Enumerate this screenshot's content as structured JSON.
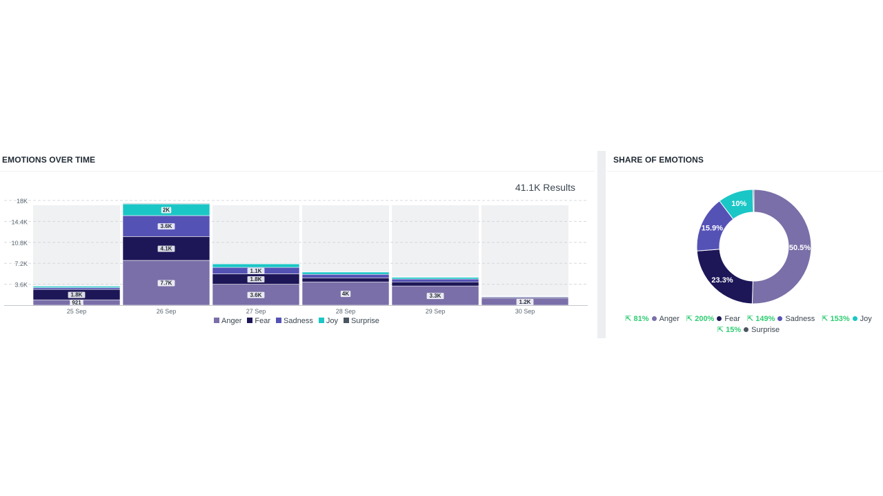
{
  "left_panel": {
    "title": "EMOTIONS OVER TIME",
    "results": "41.1K Results"
  },
  "right_panel": {
    "title": "SHARE OF EMOTIONS"
  },
  "colors": {
    "Anger": "#7a6fa8",
    "Fear": "#1d1758",
    "Sadness": "#5552b6",
    "Joy": "#1bc6c6",
    "Surprise": "#4a5560"
  },
  "chart_data": [
    {
      "type": "bar",
      "stacked": true,
      "categories": [
        "25 Sep",
        "26 Sep",
        "27 Sep",
        "28 Sep",
        "29 Sep",
        "30 Sep"
      ],
      "yticks": [
        "3.6K",
        "7.2K",
        "10.8K",
        "14.4K",
        "18K"
      ],
      "ytick_values": [
        3600,
        7200,
        10800,
        14400,
        18000
      ],
      "ylim": [
        0,
        18000
      ],
      "grid": true,
      "legend": "bottom",
      "series": [
        {
          "name": "Anger",
          "values": [
            921,
            7700,
            3600,
            4000,
            3300,
            1200
          ],
          "labels": [
            "921",
            "7.7K",
            "3.6K",
            "4K",
            "3.3K",
            "1.2K"
          ]
        },
        {
          "name": "Fear",
          "values": [
            1800,
            4100,
            1800,
            700,
            700,
            150
          ],
          "labels": [
            "1.8K",
            "4.1K",
            "1.8K",
            "",
            "",
            ""
          ]
        },
        {
          "name": "Sadness",
          "values": [
            300,
            3600,
            1100,
            600,
            500,
            120
          ],
          "labels": [
            "",
            "3.6K",
            "1.1K",
            "",
            "",
            ""
          ]
        },
        {
          "name": "Joy",
          "values": [
            250,
            2000,
            600,
            400,
            300,
            80
          ],
          "labels": [
            "",
            "2K",
            "",
            "",
            "",
            ""
          ]
        },
        {
          "name": "Surprise",
          "values": [
            60,
            100,
            80,
            60,
            50,
            30
          ],
          "labels": [
            "",
            "",
            "",
            "",
            "",
            ""
          ]
        }
      ]
    },
    {
      "type": "pie",
      "donut": true,
      "legend": "bottom",
      "slices": [
        {
          "name": "Anger",
          "value": 50.5,
          "label": "50.5%",
          "change": "81%"
        },
        {
          "name": "Fear",
          "value": 23.3,
          "label": "23.3%",
          "change": "200%"
        },
        {
          "name": "Sadness",
          "value": 15.9,
          "label": "15.9%",
          "change": "149%"
        },
        {
          "name": "Joy",
          "value": 10,
          "label": "10%",
          "change": "153%"
        },
        {
          "name": "Surprise",
          "value": 0.3,
          "label": "",
          "change": "15%"
        }
      ]
    }
  ]
}
